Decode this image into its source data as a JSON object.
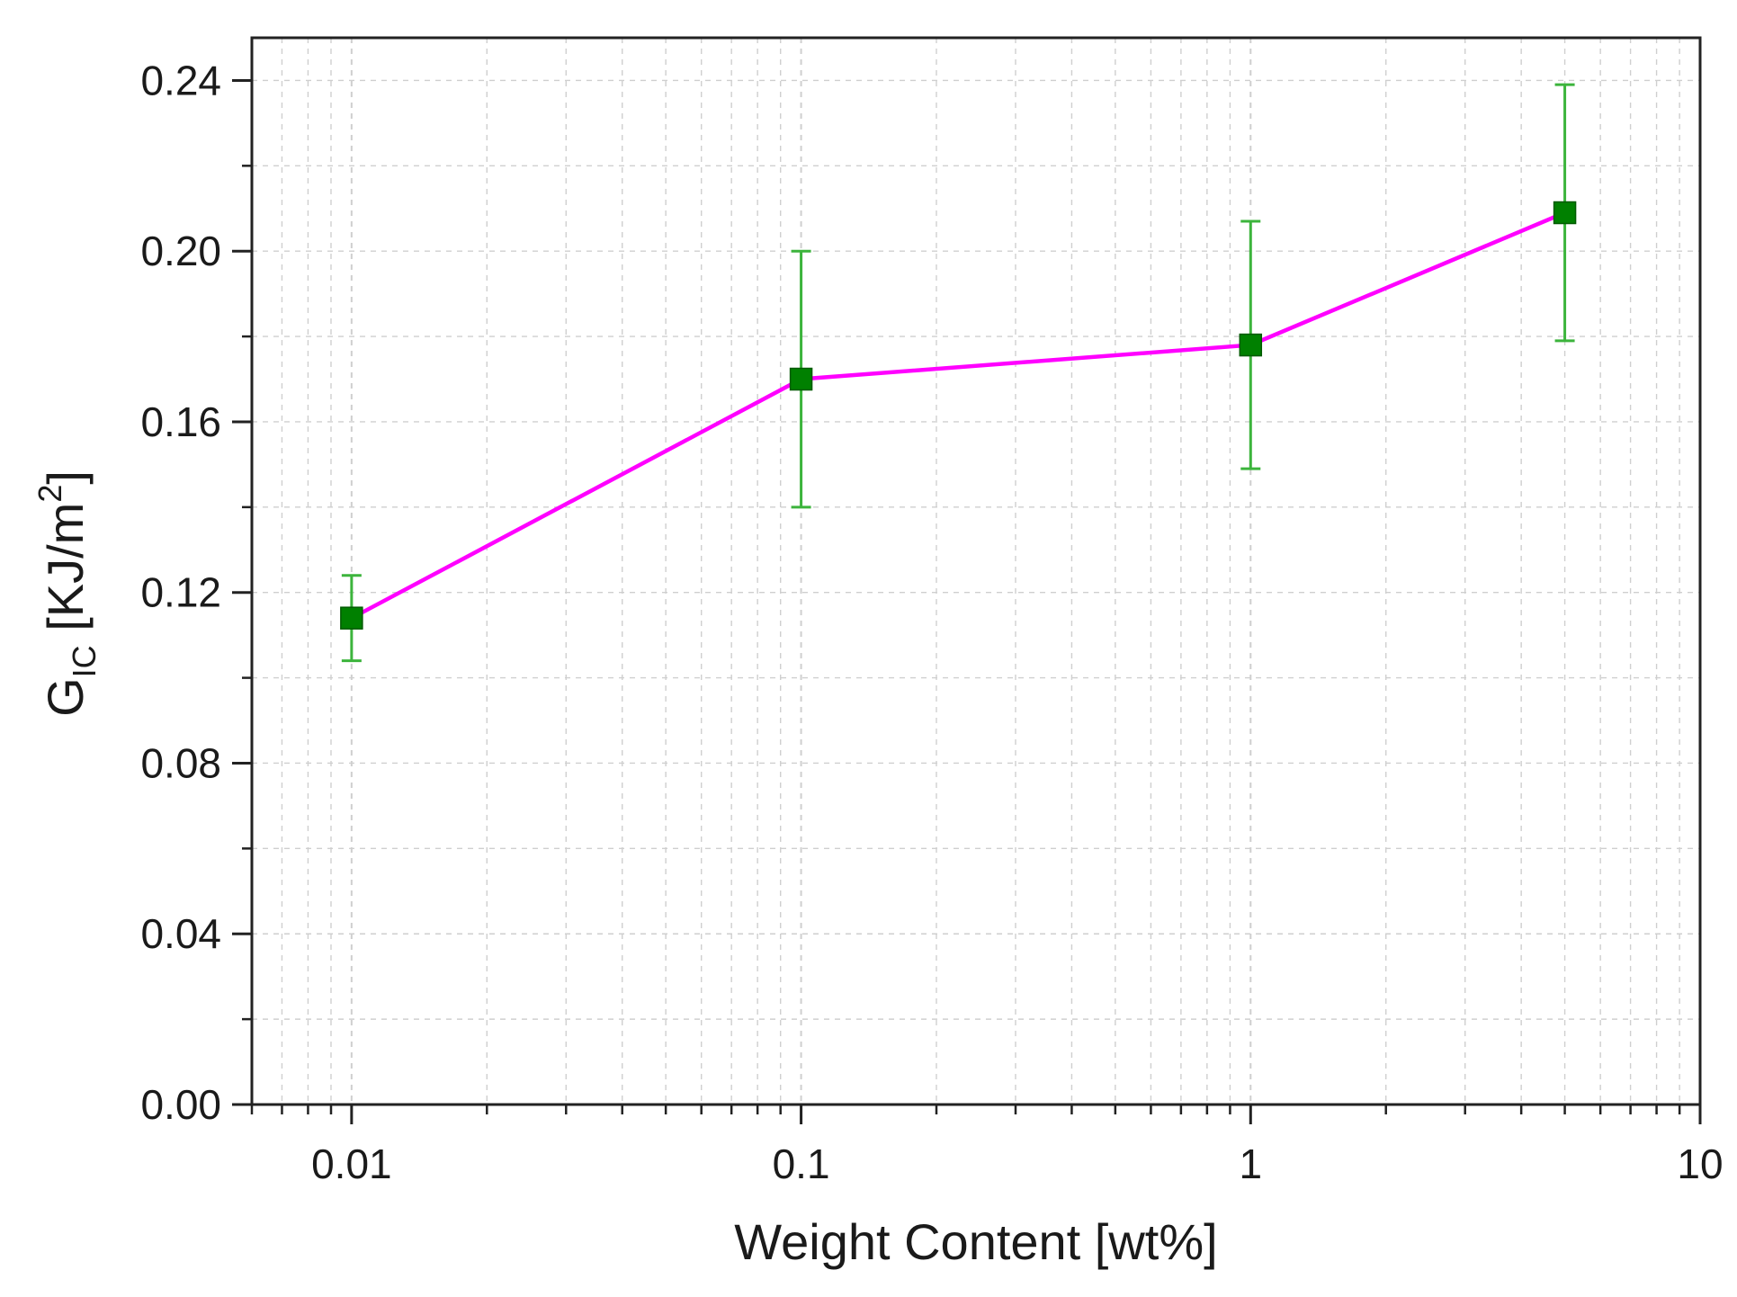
{
  "chart_data": {
    "type": "line",
    "title": "",
    "xlabel": "Weight Content [wt%]",
    "ylabel": {
      "main": "G",
      "subscript": "IC",
      "unit_open": " [KJ/m",
      "unit_superscript": "2",
      "unit_close": "]"
    },
    "x_scale": "log",
    "xlim": [
      0.006,
      10
    ],
    "ylim": [
      0.0,
      0.25
    ],
    "x_ticks": [
      0.01,
      0.1,
      1,
      10
    ],
    "x_tick_labels": [
      "0.01",
      "0.1",
      "1",
      "10"
    ],
    "y_ticks": [
      0.0,
      0.04,
      0.08,
      0.12,
      0.16,
      0.2,
      0.24
    ],
    "y_tick_labels": [
      "0.00",
      "0.04",
      "0.08",
      "0.12",
      "0.16",
      "0.20",
      "0.24"
    ],
    "grid": true,
    "legend": "none",
    "colors": {
      "line": "#ff00ff",
      "marker": "#008000",
      "error_bar": "#3cb43c",
      "grid": "#cfcfcf",
      "axis": "#222222"
    },
    "series": [
      {
        "x": [
          0.01,
          0.1,
          1,
          5
        ],
        "y": [
          0.114,
          0.17,
          0.178,
          0.209
        ],
        "y_err_low": [
          0.104,
          0.14,
          0.149,
          0.179
        ],
        "y_err_high": [
          0.124,
          0.2,
          0.207,
          0.239
        ]
      }
    ]
  }
}
